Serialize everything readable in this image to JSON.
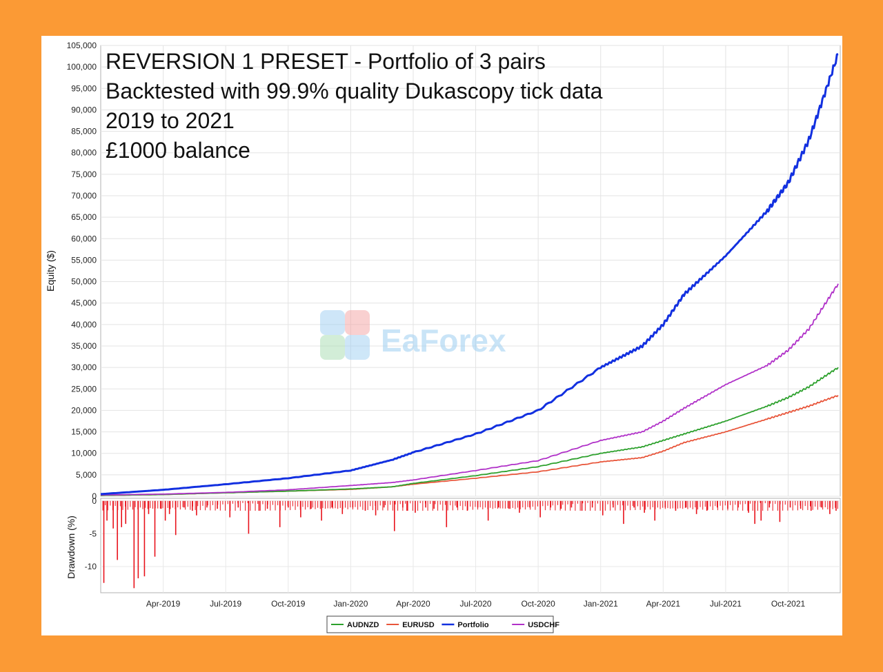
{
  "chart_data": {
    "type": "line",
    "title_lines": [
      "REVERSION 1 PRESET - Portfolio of 3 pairs",
      "Backtested with 99.9% quality Dukascopy tick data",
      "2019 to 2021",
      "£1000 balance"
    ],
    "equity_axis": {
      "ylabel": "Equity ($)",
      "ylim": [
        0,
        105000
      ],
      "ticks": [
        0,
        5000,
        10000,
        15000,
        20000,
        25000,
        30000,
        35000,
        40000,
        45000,
        50000,
        55000,
        60000,
        65000,
        70000,
        75000,
        80000,
        85000,
        90000,
        95000,
        100000,
        105000
      ],
      "tick_labels": [
        "0",
        "5,000",
        "10,000",
        "15,000",
        "20,000",
        "25,000",
        "30,000",
        "35,000",
        "40,000",
        "45,000",
        "50,000",
        "55,000",
        "60,000",
        "65,000",
        "70,000",
        "75,000",
        "80,000",
        "85,000",
        "90,000",
        "95,000",
        "100,000",
        "105,000"
      ]
    },
    "drawdown_axis": {
      "ylabel": "Drawdown (%)",
      "ylim": [
        -14,
        0.4
      ],
      "ticks": [
        0,
        -5,
        -10
      ],
      "tick_labels": [
        "0",
        "-5",
        "-10"
      ]
    },
    "x_axis": {
      "xlim": [
        0,
        35.5
      ],
      "tick_positions": [
        3,
        6,
        9,
        12,
        15,
        18,
        21,
        24,
        27,
        30,
        33
      ],
      "tick_labels": [
        "Apr-2019",
        "Jul-2019",
        "Oct-2019",
        "Jan-2020",
        "Apr-2020",
        "Jul-2020",
        "Oct-2020",
        "Jan-2021",
        "Apr-2021",
        "Jul-2021",
        "Oct-2021"
      ]
    },
    "x": [
      0,
      3,
      6,
      9,
      12,
      14,
      15,
      18,
      21,
      24,
      26,
      27,
      28,
      30,
      32,
      33,
      34,
      35.4
    ],
    "series": [
      {
        "name": "AUDNZD",
        "color": "#2ca02c",
        "values": [
          200,
          400,
          800,
          1200,
          1700,
          2200,
          3000,
          4800,
          6900,
          10000,
          11500,
          13000,
          14500,
          17500,
          21000,
          23000,
          25500,
          30000
        ]
      },
      {
        "name": "EURUSD",
        "color": "#e8553a",
        "values": [
          200,
          400,
          800,
          1200,
          1600,
          2200,
          2800,
          4200,
          5700,
          8000,
          9000,
          10500,
          12500,
          15000,
          18000,
          19500,
          21000,
          23500
        ]
      },
      {
        "name": "Portfolio",
        "color": "#1230e0",
        "values": [
          500,
          1500,
          2800,
          4200,
          6000,
          8500,
          10200,
          14500,
          20000,
          30000,
          35000,
          40000,
          47000,
          56000,
          66500,
          73000,
          83000,
          103000
        ]
      },
      {
        "name": "USDCHF",
        "color": "#b030c8",
        "values": [
          300,
          500,
          900,
          1500,
          2500,
          3200,
          3800,
          6000,
          8300,
          13000,
          15000,
          17500,
          20500,
          26000,
          30500,
          34000,
          39000,
          49500
        ]
      }
    ],
    "drawdown": {
      "x": [
        0.15,
        0.3,
        0.6,
        0.8,
        1.0,
        1.2,
        1.6,
        1.8,
        2.1,
        2.3,
        2.6,
        2.9,
        3.1,
        3.3,
        3.6,
        4.0,
        4.4,
        4.6,
        5.1,
        5.6,
        6.2,
        6.6,
        7.1,
        7.6,
        8.0,
        8.6,
        9.0,
        9.6,
        10.1,
        10.6,
        11.1,
        11.6,
        12.1,
        12.7,
        13.2,
        13.6,
        14.1,
        14.5,
        14.7,
        15.1,
        15.6,
        16.0,
        16.6,
        17.1,
        17.6,
        18.1,
        18.6,
        19.1,
        19.6,
        20.1,
        20.6,
        21.1,
        21.6,
        22.1,
        22.6,
        23.1,
        23.6,
        24.1,
        24.6,
        25.1,
        25.6,
        26.1,
        26.6,
        27.1,
        27.6,
        28.1,
        28.6,
        29.1,
        29.6,
        30.1,
        30.6,
        31.1,
        31.4,
        31.7,
        32.1,
        32.6,
        33.1,
        33.6,
        34.1,
        34.6,
        35.0,
        35.3
      ],
      "values": [
        -12.5,
        -3.0,
        -4.2,
        -9.0,
        -4.0,
        -3.5,
        -13.3,
        -11.8,
        -11.5,
        -2.0,
        -8.5,
        -1.2,
        -3.0,
        -2.0,
        -5.2,
        -1.0,
        -1.5,
        -2.2,
        -1.0,
        -1.2,
        -2.5,
        -1.0,
        -5.0,
        -1.5,
        -1.2,
        -4.0,
        -1.0,
        -2.5,
        -1.2,
        -3.0,
        -1.0,
        -2.0,
        -1.0,
        -1.5,
        -2.2,
        -1.0,
        -4.6,
        -1.0,
        -1.5,
        -1.8,
        -1.0,
        -1.2,
        -4.0,
        -1.0,
        -1.5,
        -1.0,
        -3.0,
        -1.0,
        -1.2,
        -1.8,
        -1.0,
        -2.5,
        -1.0,
        -1.2,
        -1.0,
        -1.5,
        -1.0,
        -2.2,
        -1.0,
        -3.5,
        -1.0,
        -1.8,
        -3.0,
        -1.0,
        -1.5,
        -1.0,
        -2.0,
        -1.5,
        -1.0,
        -1.2,
        -1.0,
        -1.8,
        -3.5,
        -3.0,
        -1.0,
        -3.2,
        -1.0,
        -1.2,
        -1.5,
        -1.0,
        -2.0,
        -1.5
      ]
    },
    "legend": [
      "AUDNZD",
      "EURUSD",
      "Portfolio",
      "USDCHF"
    ],
    "watermark": "EaForex"
  }
}
